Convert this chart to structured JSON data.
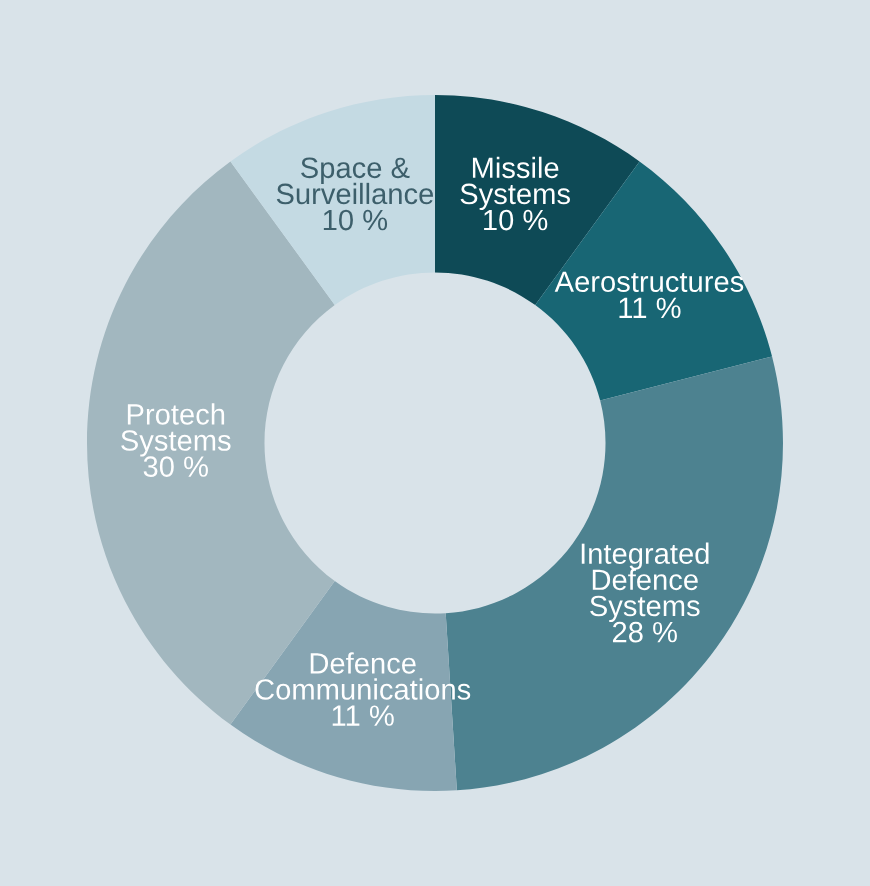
{
  "chart_data": {
    "type": "donut",
    "categories": [
      "Missile\nSystems",
      "Aerostructures",
      "Integrated\nDefence\nSystems",
      "Defence\nCommunications",
      "Protech\nSystems",
      "Space &\nSurveillance"
    ],
    "values": [
      10,
      11,
      28,
      11,
      30,
      10
    ],
    "value_labels": [
      "10 %",
      "11 %",
      "28 %",
      "11 %",
      "30 %",
      "10 %"
    ],
    "colors": [
      "#0e4a56",
      "#186674",
      "#4d8290",
      "#87a5b2",
      "#a2b7bf",
      "#c4dae3"
    ],
    "legend": false
  }
}
